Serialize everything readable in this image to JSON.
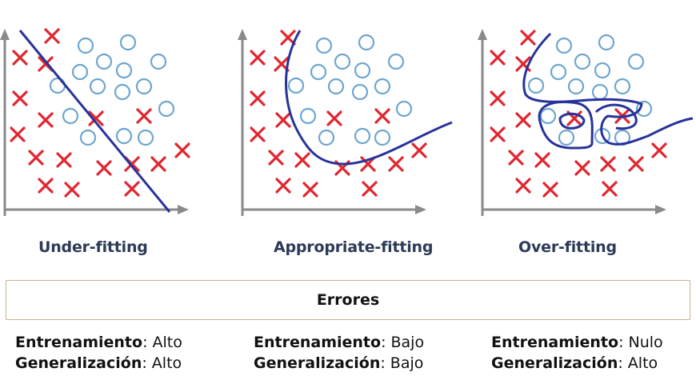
{
  "panels": [
    {
      "caption": "Under-fitting",
      "crosses": [
        [
          65,
          45
        ],
        [
          25,
          72
        ],
        [
          57,
          80
        ],
        [
          25,
          123
        ],
        [
          57,
          150
        ],
        [
          120,
          148
        ],
        [
          180,
          145
        ],
        [
          22,
          168
        ],
        [
          45,
          197
        ],
        [
          80,
          200
        ],
        [
          130,
          210
        ],
        [
          165,
          205
        ],
        [
          198,
          205
        ],
        [
          228,
          188
        ],
        [
          57,
          232
        ],
        [
          90,
          237
        ],
        [
          165,
          236
        ]
      ],
      "circles": [
        [
          107,
          57
        ],
        [
          160,
          53
        ],
        [
          130,
          77
        ],
        [
          198,
          77
        ],
        [
          100,
          90
        ],
        [
          155,
          88
        ],
        [
          72,
          107
        ],
        [
          122,
          108
        ],
        [
          153,
          115
        ],
        [
          180,
          108
        ],
        [
          208,
          136
        ],
        [
          88,
          145
        ],
        [
          110,
          172
        ],
        [
          155,
          170
        ],
        [
          182,
          172
        ]
      ]
    },
    {
      "caption": "Appropriate-fitting",
      "crosses": [
        [
          360,
          47
        ],
        [
          322,
          72
        ],
        [
          352,
          80
        ],
        [
          322,
          123
        ],
        [
          354,
          150
        ],
        [
          418,
          148
        ],
        [
          478,
          145
        ],
        [
          322,
          168
        ],
        [
          345,
          197
        ],
        [
          378,
          200
        ],
        [
          428,
          210
        ],
        [
          460,
          205
        ],
        [
          495,
          205
        ],
        [
          524,
          188
        ],
        [
          354,
          232
        ],
        [
          388,
          237
        ],
        [
          462,
          236
        ]
      ],
      "circles": [
        [
          405,
          57
        ],
        [
          458,
          53
        ],
        [
          428,
          77
        ],
        [
          495,
          77
        ],
        [
          398,
          90
        ],
        [
          453,
          88
        ],
        [
          370,
          107
        ],
        [
          420,
          108
        ],
        [
          450,
          115
        ],
        [
          478,
          108
        ],
        [
          505,
          136
        ],
        [
          385,
          145
        ],
        [
          408,
          172
        ],
        [
          453,
          170
        ],
        [
          478,
          172
        ]
      ]
    },
    {
      "caption": "Over-fitting",
      "crosses": [
        [
          660,
          47
        ],
        [
          622,
          72
        ],
        [
          654,
          80
        ],
        [
          622,
          123
        ],
        [
          654,
          150
        ],
        [
          718,
          148
        ],
        [
          778,
          145
        ],
        [
          622,
          168
        ],
        [
          645,
          197
        ],
        [
          678,
          200
        ],
        [
          728,
          210
        ],
        [
          760,
          205
        ],
        [
          795,
          205
        ],
        [
          824,
          188
        ],
        [
          654,
          232
        ],
        [
          688,
          237
        ],
        [
          762,
          236
        ]
      ],
      "circles": [
        [
          705,
          57
        ],
        [
          758,
          53
        ],
        [
          728,
          77
        ],
        [
          795,
          77
        ],
        [
          698,
          90
        ],
        [
          753,
          88
        ],
        [
          670,
          107
        ],
        [
          720,
          108
        ],
        [
          750,
          115
        ],
        [
          778,
          108
        ],
        [
          805,
          136
        ],
        [
          685,
          145
        ],
        [
          708,
          172
        ],
        [
          753,
          170
        ],
        [
          778,
          172
        ]
      ]
    }
  ],
  "errors": {
    "title": "Errores",
    "columns": [
      {
        "row1_label": "Entrenamiento",
        "row1_value": ": Alto",
        "row2_label": "Generalización",
        "row2_value": ": Alto"
      },
      {
        "row1_label": "Entrenamiento",
        "row1_value": ": Bajo",
        "row2_label": "Generalización",
        "row2_value": ": Bajo"
      },
      {
        "row1_label": "Entrenamiento",
        "row1_value": ": Nulo",
        "row2_label": "Generalización",
        "row2_value": ": Alto"
      }
    ]
  },
  "colors": {
    "cross": "#e02630",
    "circle": "#6ea6cf",
    "curve": "#27339a",
    "axis": "#8a8a8a"
  }
}
